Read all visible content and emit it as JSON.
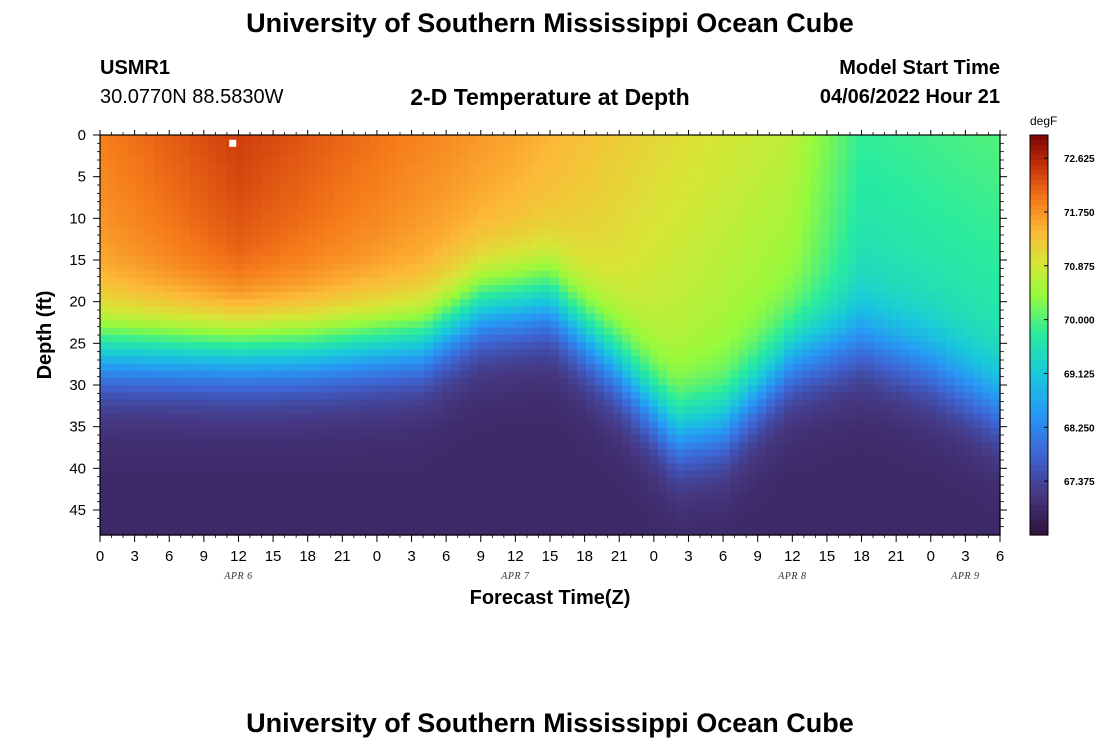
{
  "page": {
    "title": "University of Southern Mississippi Ocean Cube",
    "footer_title": "University of Southern Mississippi Ocean Cube"
  },
  "station": {
    "id": "USMR1",
    "coords": "30.0770N  88.5830W"
  },
  "model": {
    "label": "Model Start Time",
    "start": "04/06/2022 Hour 21"
  },
  "chart_data": {
    "type": "heatmap",
    "title": "2-D Temperature at Depth",
    "xlabel": "Forecast Time(Z)",
    "ylabel": "Depth (ft)",
    "x_range_hours": [
      0,
      78
    ],
    "x_ticks": [
      "0",
      "3",
      "6",
      "9",
      "12",
      "15",
      "18",
      "21",
      "0",
      "3",
      "6",
      "9",
      "12",
      "15",
      "18",
      "21",
      "0",
      "3",
      "6",
      "9",
      "12",
      "15",
      "18",
      "21",
      "0",
      "3",
      "6"
    ],
    "day_labels": [
      {
        "label": "APR 6",
        "hour": 12
      },
      {
        "label": "APR 7",
        "hour": 36
      },
      {
        "label": "APR 8",
        "hour": 60
      },
      {
        "label": "APR 9",
        "hour": 75
      }
    ],
    "y_range_ft": [
      0,
      48
    ],
    "y_ticks": [
      0,
      5,
      10,
      15,
      20,
      25,
      30,
      35,
      40,
      45
    ],
    "colorbar": {
      "unit": "degF",
      "min": 66.5,
      "max": 73.0,
      "tick_labels": [
        "72.625",
        "71.750",
        "70.875",
        "70.000",
        "69.125",
        "68.250",
        "67.375"
      ],
      "tick_values": [
        72.625,
        71.75,
        70.875,
        70.0,
        69.125,
        68.25,
        67.375
      ]
    },
    "surface_temp_degF": [
      {
        "hour": 0,
        "value": 71.9
      },
      {
        "hour": 12,
        "value": 72.4
      },
      {
        "hour": 24,
        "value": 72.0
      },
      {
        "hour": 36,
        "value": 71.6
      },
      {
        "hour": 48,
        "value": 71.1
      },
      {
        "hour": 60,
        "value": 70.7
      },
      {
        "hour": 66,
        "value": 69.8
      },
      {
        "hour": 78,
        "value": 70.0
      }
    ],
    "thermocline_depth_ft": [
      {
        "hour": 0,
        "value": 26
      },
      {
        "hour": 18,
        "value": 26
      },
      {
        "hour": 28,
        "value": 25
      },
      {
        "hour": 33,
        "value": 21
      },
      {
        "hour": 39,
        "value": 20
      },
      {
        "hour": 45,
        "value": 28
      },
      {
        "hour": 50,
        "value": 36
      },
      {
        "hour": 54,
        "value": 35
      },
      {
        "hour": 60,
        "value": 27
      },
      {
        "hour": 66,
        "value": 25
      },
      {
        "hour": 72,
        "value": 28
      },
      {
        "hour": 78,
        "value": 33
      }
    ],
    "marker": {
      "hour": 11.5,
      "depth": 1
    }
  }
}
